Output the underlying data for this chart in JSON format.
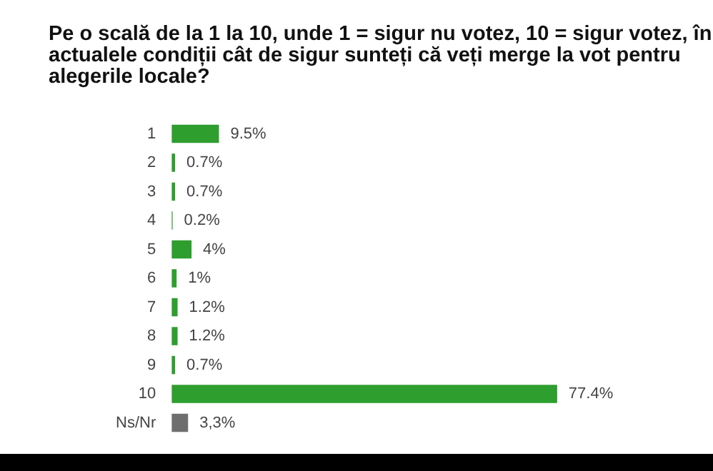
{
  "chart_data": {
    "type": "bar",
    "orientation": "horizontal",
    "title": "Pe o scală de la 1 la 10, unde 1 = sigur nu votez, 10 = sigur votez, în actualele condiții cât de sigur sunteți că veți merge la vot pentru alegerile locale?",
    "categories": [
      "1",
      "2",
      "3",
      "4",
      "5",
      "6",
      "7",
      "8",
      "9",
      "10",
      "Ns/Nr"
    ],
    "values": [
      9.5,
      0.7,
      0.7,
      0.2,
      4,
      1,
      1.2,
      1.2,
      0.7,
      77.4,
      3.3
    ],
    "value_labels": [
      "9.5%",
      "0.7%",
      "0.7%",
      "0.2%",
      "4%",
      "1%",
      "1.2%",
      "1.2%",
      "0.7%",
      "77.4%",
      "3,3%"
    ],
    "colors": [
      "#2e9e2e",
      "#2e9e2e",
      "#2e9e2e",
      "#2e9e2e",
      "#2e9e2e",
      "#2e9e2e",
      "#2e9e2e",
      "#2e9e2e",
      "#2e9e2e",
      "#2e9e2e",
      "#6e6e6e"
    ],
    "legend": false
  }
}
